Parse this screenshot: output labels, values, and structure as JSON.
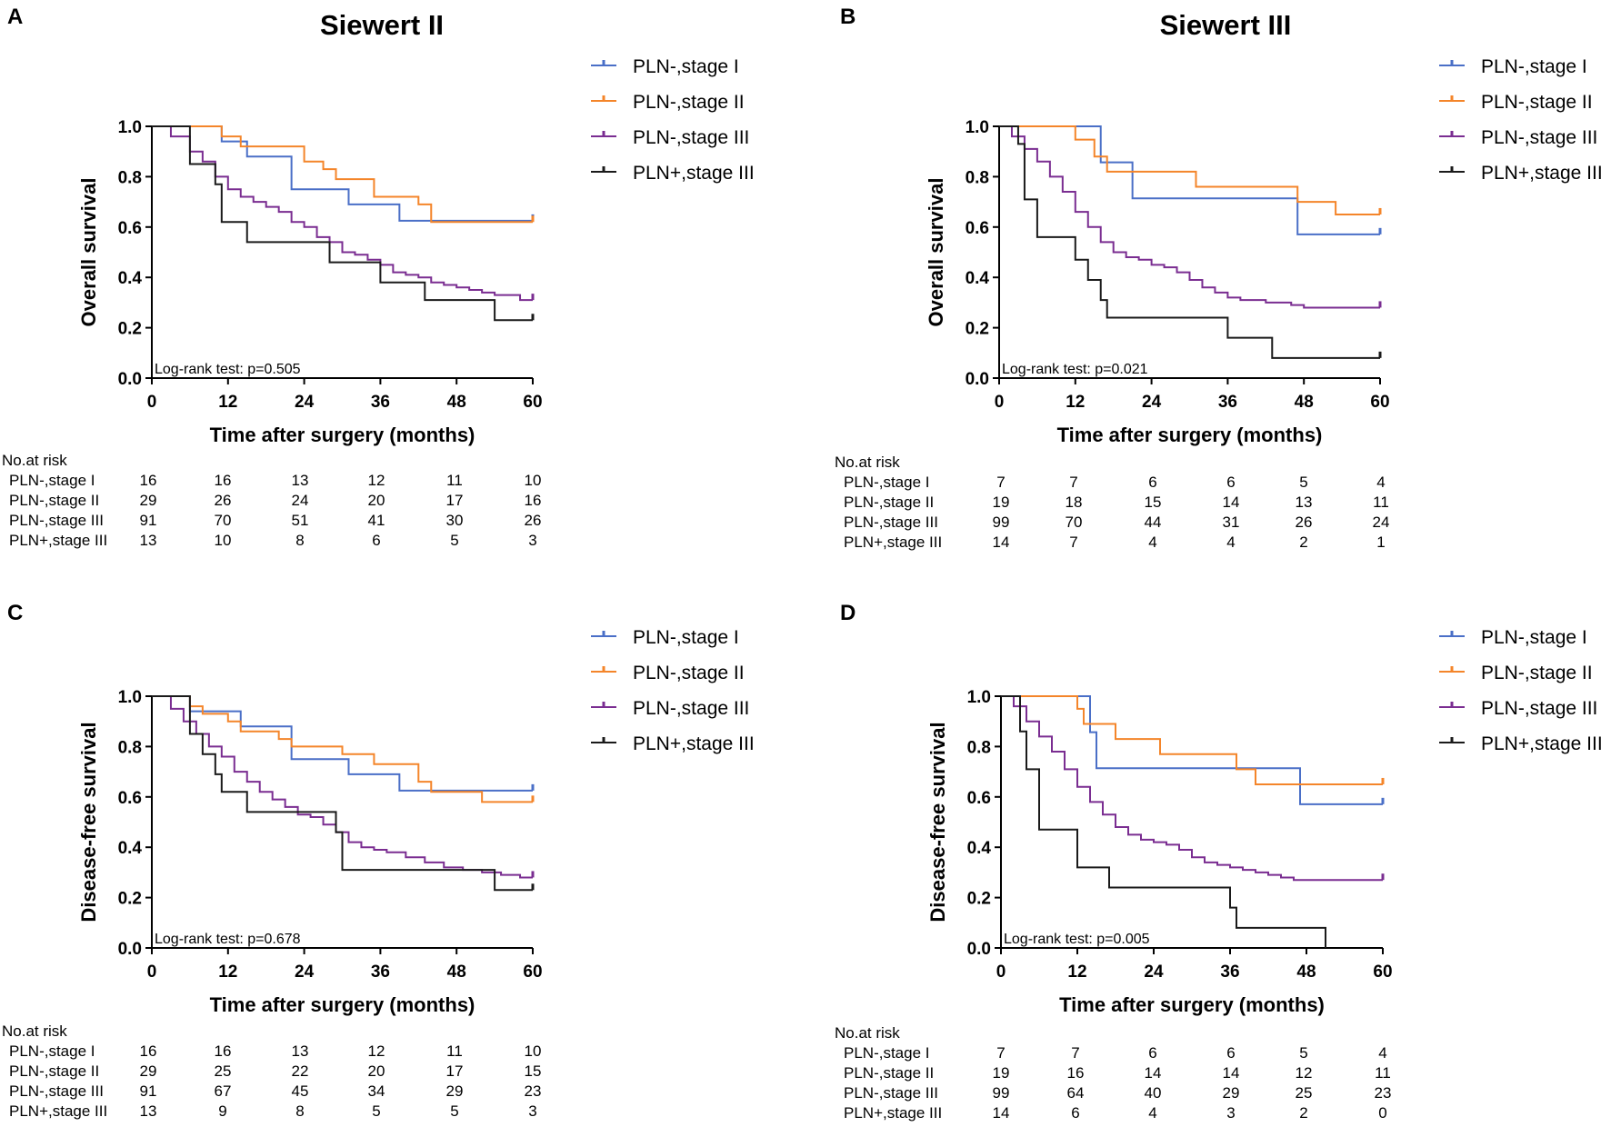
{
  "colors": {
    "PLN-,stage I": "#4a6fc7",
    "PLN-,stage II": "#f4852a",
    "PLN-,stage III": "#7a2d91",
    "PLN+,stage III": "#1a1a1a"
  },
  "chart_data": [
    {
      "panel": "A",
      "type": "line",
      "title": "Siewert II",
      "xlabel": "Time after surgery (months)",
      "ylabel": "Overall survival",
      "xlim": [
        0,
        60
      ],
      "ylim": [
        0,
        1
      ],
      "xticks": [
        "0",
        "12",
        "24",
        "36",
        "48",
        "60"
      ],
      "yticks": [
        "0.0",
        "0.2",
        "0.4",
        "0.6",
        "0.8",
        "1.0"
      ],
      "annotation": "Log-rank test: p=0.505",
      "series": [
        {
          "name": "PLN-,stage I",
          "x": [
            0,
            11,
            15,
            22,
            31,
            39,
            60
          ],
          "y": [
            1,
            0.94,
            0.88,
            0.75,
            0.69,
            0.625,
            0.625
          ]
        },
        {
          "name": "PLN-,stage II",
          "x": [
            0,
            11,
            14,
            24,
            27,
            29,
            35,
            42,
            44,
            60
          ],
          "y": [
            1,
            0.96,
            0.92,
            0.86,
            0.83,
            0.79,
            0.72,
            0.69,
            0.62,
            0.62
          ]
        },
        {
          "name": "PLN-,stage III",
          "x": [
            0,
            3,
            6,
            8,
            10,
            12,
            14,
            16,
            18,
            20,
            22,
            24,
            26,
            28,
            30,
            32,
            34,
            36,
            38,
            40,
            42,
            44,
            46,
            48,
            50,
            52,
            54,
            56,
            58,
            60
          ],
          "y": [
            1,
            0.96,
            0.9,
            0.86,
            0.8,
            0.75,
            0.72,
            0.7,
            0.68,
            0.66,
            0.62,
            0.6,
            0.56,
            0.54,
            0.5,
            0.49,
            0.47,
            0.45,
            0.42,
            0.41,
            0.4,
            0.38,
            0.37,
            0.36,
            0.35,
            0.34,
            0.33,
            0.33,
            0.31,
            0.31
          ]
        },
        {
          "name": "PLN+,stage III",
          "x": [
            0,
            6,
            10,
            11,
            15,
            28,
            36,
            43,
            54,
            60
          ],
          "y": [
            1,
            0.85,
            0.77,
            0.62,
            0.54,
            0.46,
            0.38,
            0.31,
            0.23,
            0.23
          ]
        }
      ],
      "risk_table": {
        "title": "No.at risk",
        "times": [
          0,
          12,
          24,
          36,
          48,
          60
        ],
        "rows": [
          {
            "label": "PLN-,stage I",
            "values": [
              "16",
              "16",
              "13",
              "12",
              "11",
              "10"
            ]
          },
          {
            "label": "PLN-,stage II",
            "values": [
              "29",
              "26",
              "24",
              "20",
              "17",
              "16"
            ]
          },
          {
            "label": "PLN-,stage III",
            "values": [
              "91",
              "70",
              "51",
              "41",
              "30",
              "26"
            ]
          },
          {
            "label": "PLN+,stage III",
            "values": [
              "13",
              "10",
              "8",
              "6",
              "5",
              "3"
            ]
          }
        ]
      }
    },
    {
      "panel": "B",
      "type": "line",
      "title": "Siewert III",
      "xlabel": "Time after surgery (months)",
      "ylabel": "Overall survival",
      "xlim": [
        0,
        60
      ],
      "ylim": [
        0,
        1
      ],
      "xticks": [
        "0",
        "12",
        "24",
        "36",
        "48",
        "60"
      ],
      "yticks": [
        "0.0",
        "0.2",
        "0.4",
        "0.6",
        "0.8",
        "1.0"
      ],
      "annotation": "Log-rank test: p=0.021",
      "series": [
        {
          "name": "PLN-,stage I",
          "x": [
            0,
            16,
            21,
            47,
            60
          ],
          "y": [
            1,
            0.857,
            0.714,
            0.571,
            0.571
          ]
        },
        {
          "name": "PLN-,stage II",
          "x": [
            0,
            12,
            15,
            17,
            31,
            47,
            53,
            60
          ],
          "y": [
            1,
            0.947,
            0.88,
            0.82,
            0.76,
            0.7,
            0.65,
            0.65
          ]
        },
        {
          "name": "PLN-,stage III",
          "x": [
            0,
            2,
            4,
            6,
            8,
            10,
            12,
            14,
            16,
            18,
            20,
            22,
            24,
            26,
            28,
            30,
            32,
            34,
            36,
            38,
            40,
            42,
            44,
            46,
            48,
            50,
            52,
            54,
            56,
            58,
            60
          ],
          "y": [
            1,
            0.96,
            0.91,
            0.86,
            0.8,
            0.74,
            0.66,
            0.6,
            0.54,
            0.5,
            0.48,
            0.47,
            0.45,
            0.44,
            0.42,
            0.39,
            0.36,
            0.34,
            0.32,
            0.31,
            0.31,
            0.3,
            0.3,
            0.29,
            0.28,
            0.28,
            0.28,
            0.28,
            0.28,
            0.28,
            0.28
          ]
        },
        {
          "name": "PLN+,stage III",
          "x": [
            0,
            3,
            4,
            6,
            12,
            14,
            16,
            17,
            36,
            43,
            60
          ],
          "y": [
            1,
            0.93,
            0.71,
            0.56,
            0.47,
            0.39,
            0.31,
            0.24,
            0.16,
            0.08,
            0.08
          ]
        }
      ],
      "risk_table": {
        "title": "No.at risk",
        "times": [
          0,
          12,
          24,
          36,
          48,
          60
        ],
        "rows": [
          {
            "label": "PLN-,stage I",
            "values": [
              "7",
              "7",
              "6",
              "6",
              "5",
              "4"
            ]
          },
          {
            "label": "PLN-,stage II",
            "values": [
              "19",
              "18",
              "15",
              "14",
              "13",
              "11"
            ]
          },
          {
            "label": "PLN-,stage III",
            "values": [
              "99",
              "70",
              "44",
              "31",
              "26",
              "24"
            ]
          },
          {
            "label": "PLN+,stage III",
            "values": [
              "14",
              "7",
              "4",
              "4",
              "2",
              "1"
            ]
          }
        ]
      }
    },
    {
      "panel": "C",
      "type": "line",
      "title": "",
      "xlabel": "Time after surgery (months)",
      "ylabel": "Disease-free survival",
      "xlim": [
        0,
        60
      ],
      "ylim": [
        0,
        1
      ],
      "xticks": [
        "0",
        "12",
        "24",
        "36",
        "48",
        "60"
      ],
      "yticks": [
        "0.0",
        "0.2",
        "0.4",
        "0.6",
        "0.8",
        "1.0"
      ],
      "annotation": "Log-rank test: p=0.678",
      "series": [
        {
          "name": "PLN-,stage I",
          "x": [
            0,
            6,
            10,
            14,
            22,
            31,
            39,
            60
          ],
          "y": [
            1,
            0.94,
            0.94,
            0.88,
            0.75,
            0.69,
            0.625,
            0.625
          ]
        },
        {
          "name": "PLN-,stage II",
          "x": [
            0,
            6,
            8,
            12,
            14,
            20,
            22,
            30,
            35,
            42,
            44,
            52,
            60
          ],
          "y": [
            1,
            0.96,
            0.93,
            0.9,
            0.86,
            0.83,
            0.8,
            0.77,
            0.73,
            0.66,
            0.62,
            0.58,
            0.58
          ]
        },
        {
          "name": "PLN-,stage III",
          "x": [
            0,
            3,
            5,
            7,
            9,
            11,
            13,
            15,
            17,
            19,
            21,
            23,
            25,
            27,
            29,
            31,
            33,
            35,
            37,
            40,
            43,
            46,
            49,
            52,
            55,
            58,
            60
          ],
          "y": [
            1,
            0.95,
            0.9,
            0.85,
            0.8,
            0.76,
            0.7,
            0.66,
            0.62,
            0.59,
            0.56,
            0.53,
            0.52,
            0.49,
            0.46,
            0.42,
            0.4,
            0.39,
            0.38,
            0.36,
            0.34,
            0.32,
            0.31,
            0.3,
            0.29,
            0.28,
            0.28
          ]
        },
        {
          "name": "PLN+,stage III",
          "x": [
            0,
            6,
            8,
            10,
            11,
            15,
            29,
            30,
            54,
            60
          ],
          "y": [
            1,
            0.85,
            0.77,
            0.69,
            0.62,
            0.54,
            0.46,
            0.31,
            0.23,
            0.23
          ]
        }
      ],
      "risk_table": {
        "title": "No.at risk",
        "times": [
          0,
          12,
          24,
          36,
          48,
          60
        ],
        "rows": [
          {
            "label": "PLN-,stage I",
            "values": [
              "16",
              "16",
              "13",
              "12",
              "11",
              "10"
            ]
          },
          {
            "label": "PLN-,stage II",
            "values": [
              "29",
              "25",
              "22",
              "20",
              "17",
              "15"
            ]
          },
          {
            "label": "PLN-,stage III",
            "values": [
              "91",
              "67",
              "45",
              "34",
              "29",
              "23"
            ]
          },
          {
            "label": "PLN+,stage III",
            "values": [
              "13",
              "9",
              "8",
              "5",
              "5",
              "3"
            ]
          }
        ]
      }
    },
    {
      "panel": "D",
      "type": "line",
      "title": "",
      "xlabel": "Time after surgery (months)",
      "ylabel": "Disease-free survival",
      "xlim": [
        0,
        60
      ],
      "ylim": [
        0,
        1
      ],
      "xticks": [
        "0",
        "12",
        "24",
        "36",
        "48",
        "60"
      ],
      "yticks": [
        "0.0",
        "0.2",
        "0.4",
        "0.6",
        "0.8",
        "1.0"
      ],
      "annotation": "Log-rank test: p=0.005",
      "series": [
        {
          "name": "PLN-,stage I",
          "x": [
            0,
            14,
            15,
            47,
            60
          ],
          "y": [
            1,
            0.857,
            0.714,
            0.571,
            0.571
          ]
        },
        {
          "name": "PLN-,stage II",
          "x": [
            0,
            12,
            13,
            18,
            25,
            37,
            40,
            60
          ],
          "y": [
            1,
            0.95,
            0.89,
            0.83,
            0.77,
            0.71,
            0.65,
            0.65
          ]
        },
        {
          "name": "PLN-,stage III",
          "x": [
            0,
            2,
            4,
            6,
            8,
            10,
            12,
            14,
            16,
            18,
            20,
            22,
            24,
            26,
            28,
            30,
            32,
            34,
            36,
            38,
            40,
            42,
            44,
            46,
            48,
            50,
            52,
            54,
            56,
            58,
            60
          ],
          "y": [
            1,
            0.96,
            0.9,
            0.84,
            0.78,
            0.71,
            0.64,
            0.58,
            0.53,
            0.48,
            0.45,
            0.43,
            0.42,
            0.41,
            0.39,
            0.36,
            0.34,
            0.33,
            0.32,
            0.31,
            0.3,
            0.29,
            0.28,
            0.27,
            0.27,
            0.27,
            0.27,
            0.27,
            0.27,
            0.27,
            0.27
          ]
        },
        {
          "name": "PLN+,stage III",
          "x": [
            0,
            3,
            4,
            6,
            12,
            17,
            36,
            37,
            51
          ],
          "y": [
            1,
            0.86,
            0.71,
            0.47,
            0.32,
            0.24,
            0.16,
            0.08,
            0
          ]
        }
      ],
      "risk_table": {
        "title": "No.at risk",
        "times": [
          0,
          12,
          24,
          36,
          48,
          60
        ],
        "rows": [
          {
            "label": "PLN-,stage I",
            "values": [
              "7",
              "7",
              "6",
              "6",
              "5",
              "4"
            ]
          },
          {
            "label": "PLN-,stage II",
            "values": [
              "19",
              "16",
              "14",
              "14",
              "12",
              "11"
            ]
          },
          {
            "label": "PLN-,stage III",
            "values": [
              "99",
              "64",
              "40",
              "29",
              "25",
              "23"
            ]
          },
          {
            "label": "PLN+,stage III",
            "values": [
              "14",
              "6",
              "4",
              "3",
              "2",
              "0"
            ]
          }
        ]
      }
    }
  ]
}
